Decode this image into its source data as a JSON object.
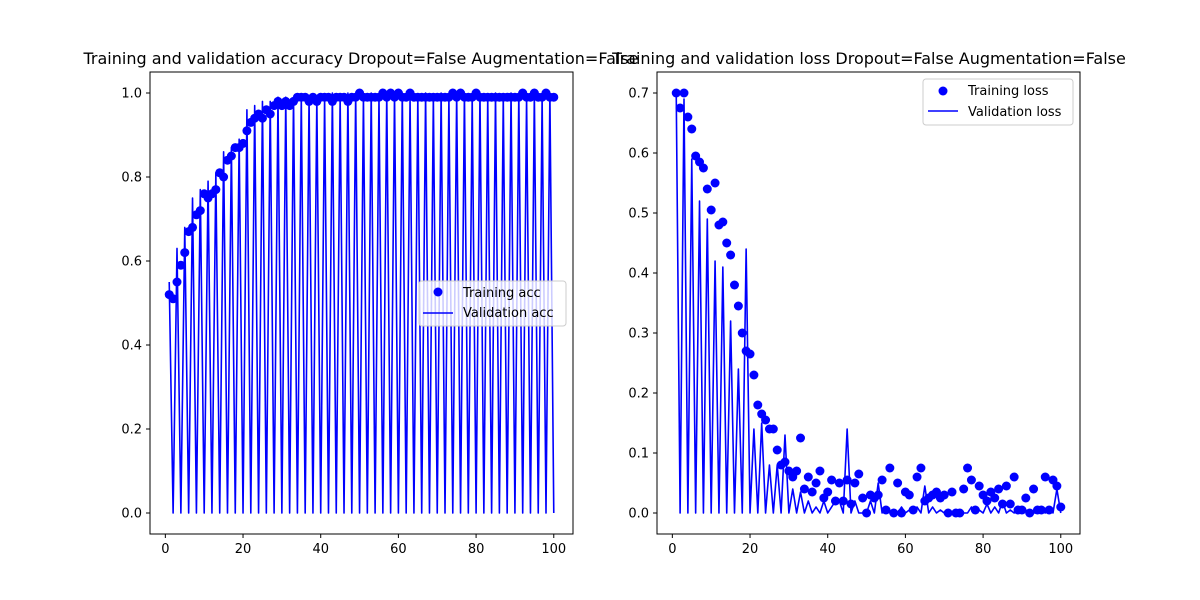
{
  "colors": {
    "series": "#0000ff",
    "axes": "#000000",
    "legend_border": "#cccccc",
    "background": "#ffffff"
  },
  "chart_data": [
    {
      "type": "scatter+line",
      "title": "Training and validation accuracy Dropout=False Augmentation=False",
      "xlabel": "",
      "ylabel": "",
      "xlim": [
        -3.95,
        104.95
      ],
      "ylim": [
        -0.05,
        1.05
      ],
      "xticks": [
        0,
        20,
        40,
        60,
        80,
        100
      ],
      "yticks": [
        0.0,
        0.2,
        0.4,
        0.6,
        0.8,
        1.0
      ],
      "ytick_labels": [
        "0.0",
        "0.2",
        "0.4",
        "0.6",
        "0.8",
        "1.0"
      ],
      "grid": false,
      "legend_position": "center-right",
      "x": [
        1,
        2,
        3,
        4,
        5,
        6,
        7,
        8,
        9,
        10,
        11,
        12,
        13,
        14,
        15,
        16,
        17,
        18,
        19,
        20,
        21,
        22,
        23,
        24,
        25,
        26,
        27,
        28,
        29,
        30,
        31,
        32,
        33,
        34,
        35,
        36,
        37,
        38,
        39,
        40,
        41,
        42,
        43,
        44,
        45,
        46,
        47,
        48,
        49,
        50,
        51,
        52,
        53,
        54,
        55,
        56,
        57,
        58,
        59,
        60,
        61,
        62,
        63,
        64,
        65,
        66,
        67,
        68,
        69,
        70,
        71,
        72,
        73,
        74,
        75,
        76,
        77,
        78,
        79,
        80,
        81,
        82,
        83,
        84,
        85,
        86,
        87,
        88,
        89,
        90,
        91,
        92,
        93,
        94,
        95,
        96,
        97,
        98,
        99,
        100
      ],
      "series": [
        {
          "name": "Training acc",
          "kind": "markers",
          "values": [
            0.52,
            0.51,
            0.55,
            0.59,
            0.62,
            0.67,
            0.68,
            0.71,
            0.72,
            0.76,
            0.75,
            0.76,
            0.77,
            0.81,
            0.8,
            0.84,
            0.85,
            0.87,
            0.87,
            0.88,
            0.91,
            0.93,
            0.94,
            0.95,
            0.94,
            0.96,
            0.95,
            0.97,
            0.98,
            0.97,
            0.98,
            0.97,
            0.98,
            0.99,
            0.99,
            0.99,
            0.98,
            0.99,
            0.98,
            0.99,
            0.99,
            0.99,
            0.98,
            0.99,
            0.99,
            0.99,
            0.98,
            0.99,
            0.99,
            1.0,
            0.99,
            0.99,
            0.99,
            0.99,
            0.99,
            1.0,
            0.99,
            1.0,
            0.99,
            1.0,
            0.99,
            0.99,
            1.0,
            0.99,
            0.99,
            0.99,
            0.99,
            0.99,
            0.99,
            0.99,
            0.99,
            0.99,
            0.99,
            1.0,
            0.99,
            1.0,
            0.99,
            0.99,
            0.99,
            1.0,
            0.99,
            0.99,
            0.99,
            0.99,
            0.99,
            0.99,
            0.99,
            0.99,
            0.99,
            0.99,
            0.99,
            1.0,
            0.99,
            0.99,
            1.0,
            0.99,
            0.99,
            1.0,
            0.99,
            0.99
          ]
        },
        {
          "name": "Validation acc",
          "kind": "line",
          "values": [
            0.55,
            0.0,
            0.63,
            0.0,
            0.68,
            0.0,
            0.75,
            0.0,
            0.77,
            0.0,
            0.79,
            0.0,
            0.81,
            0.0,
            0.86,
            0.0,
            0.87,
            0.0,
            0.89,
            0.0,
            0.96,
            0.0,
            0.97,
            0.0,
            0.98,
            0.0,
            0.98,
            0.0,
            0.99,
            0.0,
            0.99,
            0.0,
            0.99,
            0.0,
            0.99,
            0.0,
            0.99,
            0.0,
            0.99,
            0.0,
            0.99,
            0.0,
            1.0,
            0.0,
            0.99,
            0.0,
            1.0,
            0.0,
            1.0,
            0.0,
            0.99,
            0.0,
            1.0,
            0.0,
            0.99,
            0.0,
            1.0,
            0.0,
            1.0,
            0.0,
            1.0,
            0.0,
            0.99,
            0.0,
            0.99,
            0.0,
            1.0,
            0.0,
            0.99,
            0.0,
            1.0,
            0.0,
            0.99,
            0.0,
            1.0,
            0.0,
            1.0,
            0.0,
            0.99,
            0.0,
            1.0,
            0.0,
            0.99,
            0.0,
            1.0,
            0.0,
            0.99,
            0.0,
            1.0,
            0.0,
            1.0,
            0.0,
            0.99,
            0.0,
            1.0,
            0.0,
            0.99,
            0.0,
            1.0,
            0.0
          ]
        }
      ]
    },
    {
      "type": "scatter+line",
      "title": "Training and validation loss Dropout=False Augmentation=False",
      "xlabel": "",
      "ylabel": "",
      "xlim": [
        -3.95,
        104.95
      ],
      "ylim": [
        -0.035,
        0.735
      ],
      "xticks": [
        0,
        20,
        40,
        60,
        80,
        100
      ],
      "yticks": [
        0.0,
        0.1,
        0.2,
        0.3,
        0.4,
        0.5,
        0.6,
        0.7
      ],
      "ytick_labels": [
        "0.0",
        "0.1",
        "0.2",
        "0.3",
        "0.4",
        "0.5",
        "0.6",
        "0.7"
      ],
      "grid": false,
      "legend_position": "top-right",
      "x": [
        1,
        2,
        3,
        4,
        5,
        6,
        7,
        8,
        9,
        10,
        11,
        12,
        13,
        14,
        15,
        16,
        17,
        18,
        19,
        20,
        21,
        22,
        23,
        24,
        25,
        26,
        27,
        28,
        29,
        30,
        31,
        32,
        33,
        34,
        35,
        36,
        37,
        38,
        39,
        40,
        41,
        42,
        43,
        44,
        45,
        46,
        47,
        48,
        49,
        50,
        51,
        52,
        53,
        54,
        55,
        56,
        57,
        58,
        59,
        60,
        61,
        62,
        63,
        64,
        65,
        66,
        67,
        68,
        69,
        70,
        71,
        72,
        73,
        74,
        75,
        76,
        77,
        78,
        79,
        80,
        81,
        82,
        83,
        84,
        85,
        86,
        87,
        88,
        89,
        90,
        91,
        92,
        93,
        94,
        95,
        96,
        97,
        98,
        99,
        100
      ],
      "series": [
        {
          "name": "Training loss",
          "kind": "markers",
          "values": [
            0.7,
            0.675,
            0.7,
            0.66,
            0.64,
            0.595,
            0.585,
            0.575,
            0.54,
            0.505,
            0.55,
            0.48,
            0.485,
            0.45,
            0.43,
            0.38,
            0.345,
            0.3,
            0.27,
            0.265,
            0.23,
            0.18,
            0.165,
            0.155,
            0.14,
            0.14,
            0.105,
            0.08,
            0.085,
            0.07,
            0.06,
            0.07,
            0.125,
            0.04,
            0.06,
            0.035,
            0.05,
            0.07,
            0.025,
            0.035,
            0.055,
            0.02,
            0.05,
            0.02,
            0.055,
            0.015,
            0.05,
            0.065,
            0.025,
            0.0,
            0.03,
            0.025,
            0.03,
            0.055,
            0.005,
            0.075,
            0.0,
            0.05,
            0.0,
            0.035,
            0.03,
            0.005,
            0.06,
            0.075,
            0.02,
            0.025,
            0.03,
            0.035,
            0.025,
            0.03,
            0.0,
            0.035,
            0.0,
            0.0,
            0.04,
            0.075,
            0.055,
            0.005,
            0.045,
            0.03,
            0.02,
            0.035,
            0.025,
            0.04,
            0.015,
            0.045,
            0.015,
            0.06,
            0.005,
            0.005,
            0.025,
            0.0,
            0.04,
            0.005,
            0.005,
            0.06,
            0.005,
            0.055,
            0.045,
            0.01
          ]
        },
        {
          "name": "Validation loss",
          "kind": "line",
          "values": [
            0.7,
            0.0,
            0.69,
            0.0,
            0.59,
            0.0,
            0.52,
            0.0,
            0.49,
            0.0,
            0.42,
            0.0,
            0.41,
            0.0,
            0.32,
            0.0,
            0.24,
            0.0,
            0.44,
            0.0,
            0.14,
            0.0,
            0.15,
            0.0,
            0.08,
            0.0,
            0.08,
            0.0,
            0.13,
            0.0,
            0.04,
            0.0,
            0.035,
            0.0,
            0.02,
            0.0,
            0.01,
            0.0,
            0.02,
            0.0,
            0.01,
            0.02,
            0.02,
            0.0,
            0.14,
            0.0,
            0.02,
            0.0,
            0.0,
            0.0,
            0.02,
            0.0,
            0.05,
            0.0,
            0.01,
            0.0,
            0.005,
            0.0,
            0.01,
            0.0,
            0.005,
            0.0,
            0.01,
            0.0,
            0.045,
            0.0,
            0.01,
            0.0,
            0.005,
            0.0,
            0.005,
            0.0,
            0.005,
            0.0,
            0.0,
            0.0,
            0.01,
            0.0,
            0.005,
            0.0,
            0.015,
            0.0,
            0.01,
            0.0,
            0.02,
            0.0,
            0.005,
            0.0,
            0.01,
            0.0,
            0.005,
            0.0,
            0.0,
            0.0,
            0.005,
            0.0,
            0.01,
            0.0,
            0.04,
            0.0
          ]
        }
      ]
    }
  ]
}
